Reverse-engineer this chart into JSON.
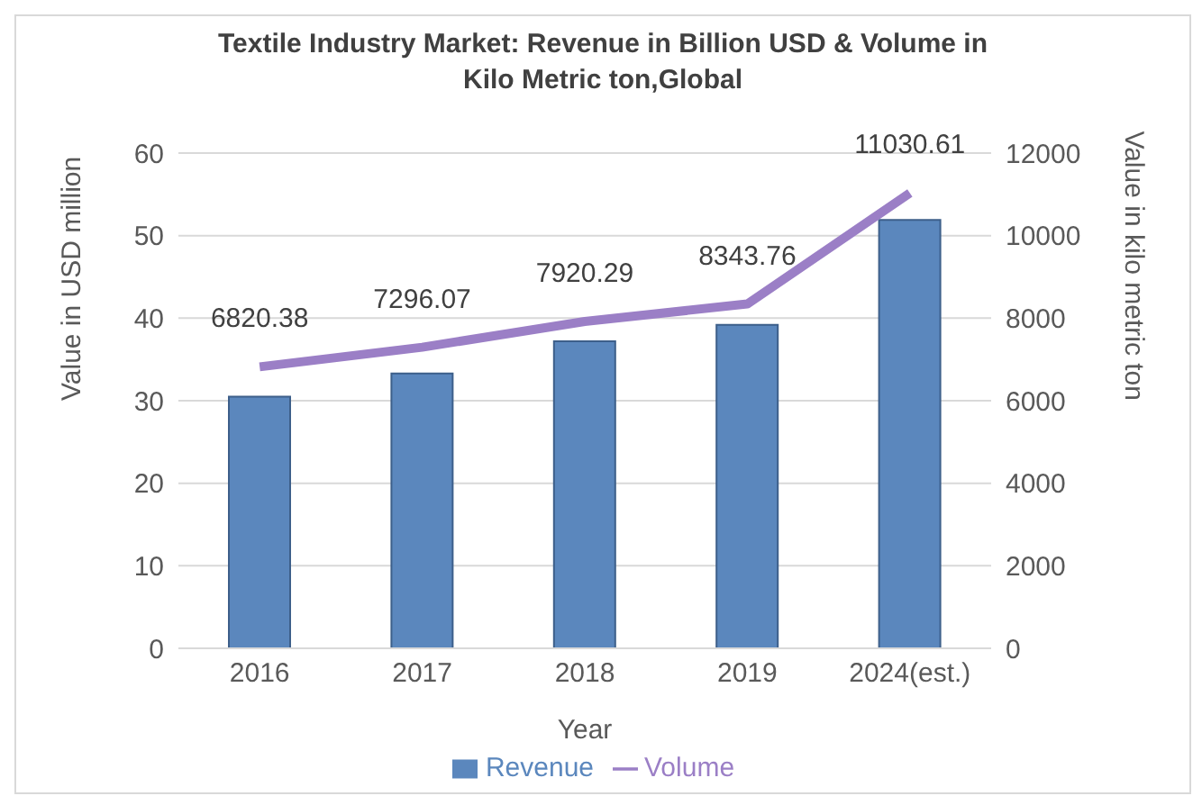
{
  "chart_data": {
    "type": "bar",
    "title": "Textile Industry Market: Revenue in Billion USD & Volume in Kilo Metric ton,Global",
    "xlabel": "Year",
    "ylabel": "Value in USD million",
    "y2label": "Value in kilo metric ton",
    "categories": [
      "2016",
      "2017",
      "2018",
      "2019",
      "2024(est.)"
    ],
    "series": [
      {
        "name": "Revenue",
        "color": "#5b87bd",
        "values": [
          30.5,
          33.3,
          37.2,
          39.2,
          51.9
        ]
      },
      {
        "name": "Volume",
        "type": "line",
        "axis": "y2",
        "color": "#9b7fc6",
        "values": [
          6820.38,
          7296.07,
          7920.29,
          8343.76,
          11030.61
        ],
        "value_labels": [
          "6820.38",
          "7296.07",
          "7920.29",
          "8343.76",
          "11030.61"
        ]
      }
    ],
    "ylim": [
      0,
      60
    ],
    "yticks": [
      0,
      10,
      20,
      30,
      40,
      50,
      60
    ],
    "y2lim": [
      0,
      12000
    ],
    "y2ticks": [
      0,
      2000,
      4000,
      6000,
      8000,
      10000,
      12000
    ],
    "grid": "y",
    "legend": "bottom"
  }
}
